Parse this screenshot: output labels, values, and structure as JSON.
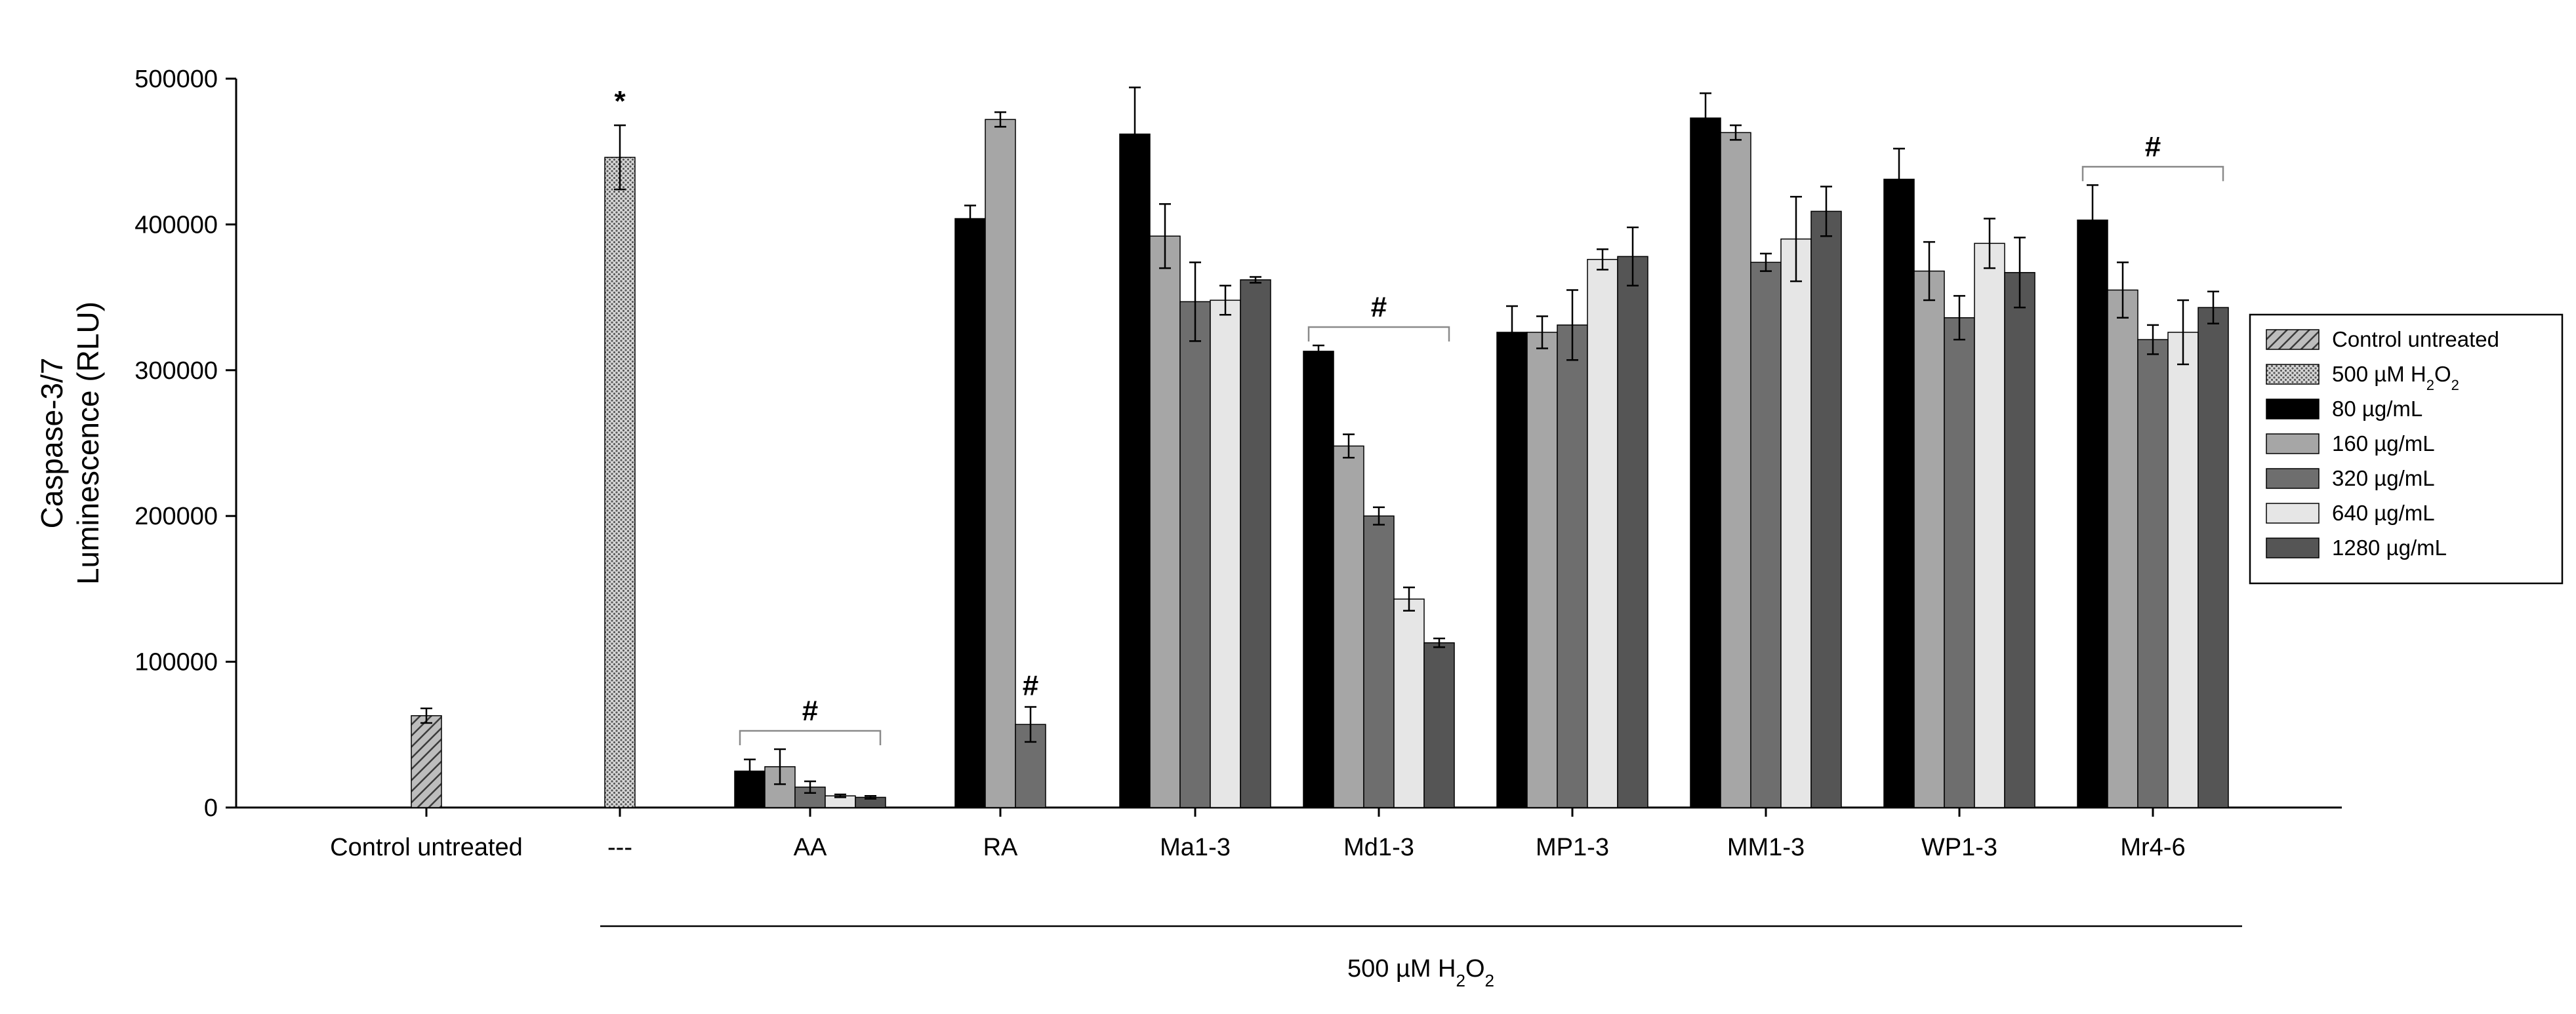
{
  "chart_data": {
    "type": "bar",
    "ylabel_line1": "Caspase-3/7",
    "ylabel_line2": "Luminescence (RLU)",
    "ylim": [
      0,
      500000
    ],
    "yticks": [
      "0",
      "100000",
      "200000",
      "300000",
      "400000",
      "500000"
    ],
    "ytick_values": [
      0,
      100000,
      200000,
      300000,
      400000,
      500000
    ],
    "group_label_main": "500 µM H",
    "group_label_sub1": "2",
    "group_label_mid": "O",
    "group_label_sub2": "2",
    "legend_position": "right",
    "series": [
      {
        "name": "Control untreated",
        "key": "ctrl",
        "color": "#b0b0b0",
        "pattern": "hatch"
      },
      {
        "name": "500 µM H2O2",
        "label_main": "500 µM H",
        "label_sub1": "2",
        "label_mid": "O",
        "label_sub2": "2",
        "key": "h2o2",
        "color": "#bdbdbd",
        "pattern": "dots"
      },
      {
        "name": "80 µg/mL",
        "key": "s80",
        "color": "#000000",
        "pattern": "solid"
      },
      {
        "name": "160 µg/mL",
        "key": "s160",
        "color": "#a6a6a6",
        "pattern": "solid"
      },
      {
        "name": "320 µg/mL",
        "key": "s320",
        "color": "#6e6e6e",
        "pattern": "solid"
      },
      {
        "name": "640 µg/mL",
        "key": "s640",
        "color": "#e6e6e6",
        "pattern": "solid"
      },
      {
        "name": "1280 µg/mL",
        "key": "s1280",
        "color": "#555555",
        "pattern": "solid"
      }
    ],
    "groups": [
      {
        "label": "Control untreated",
        "bars": [
          {
            "series": "ctrl",
            "value": 63000,
            "err": 5000
          }
        ]
      },
      {
        "label": "---",
        "annotation": "*",
        "bars": [
          {
            "series": "h2o2",
            "value": 446000,
            "err": 22000
          }
        ]
      },
      {
        "label": "AA",
        "annotation": "#",
        "bracket": true,
        "bars": [
          {
            "series": "s80",
            "value": 25000,
            "err": 8000
          },
          {
            "series": "s160",
            "value": 28000,
            "err": 12000
          },
          {
            "series": "s320",
            "value": 14000,
            "err": 4000
          },
          {
            "series": "s640",
            "value": 8000,
            "err": 1000
          },
          {
            "series": "s1280",
            "value": 7000,
            "err": 1000
          }
        ]
      },
      {
        "label": "RA",
        "bars": [
          {
            "series": "s80",
            "value": 404000,
            "err": 9000
          },
          {
            "series": "s160",
            "value": 472000,
            "err": 5000
          },
          {
            "series": "s320",
            "value": 57000,
            "err": 12000,
            "annotation": "#"
          }
        ]
      },
      {
        "label": "Ma1-3",
        "bars": [
          {
            "series": "s80",
            "value": 462000,
            "err": 32000
          },
          {
            "series": "s160",
            "value": 392000,
            "err": 22000
          },
          {
            "series": "s320",
            "value": 347000,
            "err": 27000
          },
          {
            "series": "s640",
            "value": 348000,
            "err": 10000
          },
          {
            "series": "s1280",
            "value": 362000,
            "err": 2000
          }
        ]
      },
      {
        "label": "Md1-3",
        "annotation": "#",
        "bracket": true,
        "bars": [
          {
            "series": "s80",
            "value": 313000,
            "err": 4000
          },
          {
            "series": "s160",
            "value": 248000,
            "err": 8000
          },
          {
            "series": "s320",
            "value": 200000,
            "err": 6000
          },
          {
            "series": "s640",
            "value": 143000,
            "err": 8000
          },
          {
            "series": "s1280",
            "value": 113000,
            "err": 3000
          }
        ]
      },
      {
        "label": "MP1-3",
        "bars": [
          {
            "series": "s80",
            "value": 326000,
            "err": 18000
          },
          {
            "series": "s160",
            "value": 326000,
            "err": 11000
          },
          {
            "series": "s320",
            "value": 331000,
            "err": 24000
          },
          {
            "series": "s640",
            "value": 376000,
            "err": 7000
          },
          {
            "series": "s1280",
            "value": 378000,
            "err": 20000
          }
        ]
      },
      {
        "label": "MM1-3",
        "bars": [
          {
            "series": "s80",
            "value": 473000,
            "err": 17000
          },
          {
            "series": "s160",
            "value": 463000,
            "err": 5000
          },
          {
            "series": "s320",
            "value": 374000,
            "err": 6000
          },
          {
            "series": "s640",
            "value": 390000,
            "err": 29000
          },
          {
            "series": "s1280",
            "value": 409000,
            "err": 17000
          }
        ]
      },
      {
        "label": "WP1-3",
        "bars": [
          {
            "series": "s80",
            "value": 431000,
            "err": 21000
          },
          {
            "series": "s160",
            "value": 368000,
            "err": 20000
          },
          {
            "series": "s320",
            "value": 336000,
            "err": 15000
          },
          {
            "series": "s640",
            "value": 387000,
            "err": 17000
          },
          {
            "series": "s1280",
            "value": 367000,
            "err": 24000
          }
        ]
      },
      {
        "label": "Mr4-6",
        "annotation": "#",
        "bracket": true,
        "bars": [
          {
            "series": "s80",
            "value": 403000,
            "err": 24000
          },
          {
            "series": "s160",
            "value": 355000,
            "err": 19000
          },
          {
            "series": "s320",
            "value": 321000,
            "err": 10000
          },
          {
            "series": "s640",
            "value": 326000,
            "err": 22000
          },
          {
            "series": "s1280",
            "value": 343000,
            "err": 11000
          }
        ]
      }
    ]
  }
}
